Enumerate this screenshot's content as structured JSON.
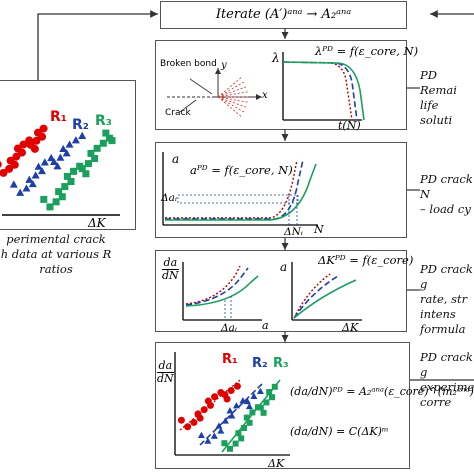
{
  "header": {
    "text": "Iterate (A′)ᵃⁿᵃ → A₂ᵃⁿᵃ"
  },
  "left_panel": {
    "series": [
      {
        "label": "R₁",
        "color": "#e00000"
      },
      {
        "label": "R₂",
        "color": "#1f3fa8"
      },
      {
        "label": "R₃",
        "color": "#19a05c"
      }
    ],
    "xlabel": "ΔK",
    "caption": [
      "perimental crack",
      "h data at various R",
      "ratios"
    ]
  },
  "panel1": {
    "ylabel": "λ",
    "xlabel": "t(N)",
    "equation": "λᴾᴰ = f(ε_core, N)",
    "broken_bond": "Broken bond",
    "crack": "Crack",
    "axis_y": "y",
    "axis_x": "x",
    "side_label": [
      "PD Remai",
      "life soluti"
    ]
  },
  "panel2": {
    "ylabel": "a",
    "xlabel": "N",
    "equation": "aᴾᴰ = f(ε_core, N)",
    "delta_a": "Δaᵢ",
    "delta_n": "ΔNᵢ",
    "side_label": [
      "PD crack N",
      "– load cy"
    ]
  },
  "panel3": {
    "left_ylabel": [
      "da",
      "dN"
    ],
    "left_xlabel": "a",
    "left_tick": "Δaᵢ",
    "right_ylabel": "a",
    "right_xlabel": "ΔK",
    "equation": "ΔKᴾᴰ = f(ε_core)",
    "side_label": [
      "PD crack g",
      "rate, str",
      "intens",
      "formula"
    ]
  },
  "panel4": {
    "ylabel": [
      "da",
      "dN"
    ],
    "xlabel": "ΔK",
    "series": [
      {
        "label": "R₁",
        "color": "#e00000"
      },
      {
        "label": "R₂",
        "color": "#1f3fa8"
      },
      {
        "label": "R₃",
        "color": "#19a05c"
      }
    ],
    "eq1": "(da/dN)ᴾᴰ = A₂ᵃⁿᵃ(ε_core)^(m₂ᵃⁿᵃ)",
    "eq2": "(da/dN) = C(ΔK)ᵐ",
    "side_label": [
      "PD crack g",
      "experime",
      "corre"
    ]
  }
}
